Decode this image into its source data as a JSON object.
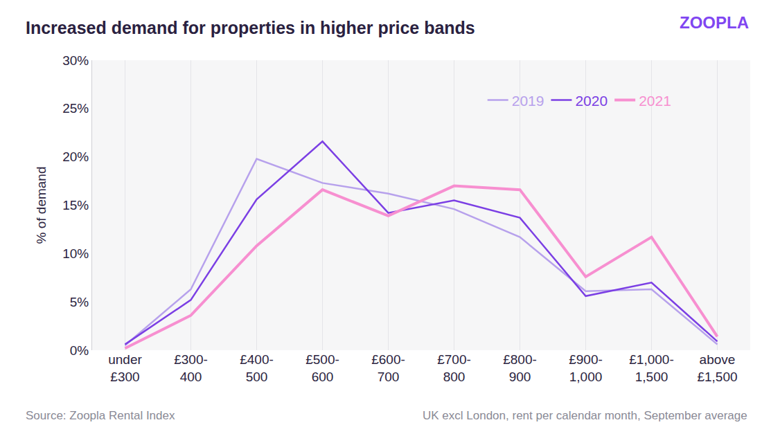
{
  "chart_data": {
    "type": "line",
    "title": "Increased demand for properties in higher price bands",
    "logo": "ZOOPLA",
    "source": "Source: Zoopla Rental Index",
    "note": "UK excl London, rent per calendar month, September average",
    "y_label": "% of demand",
    "categories": [
      "under £300",
      "£300-400",
      "£400-500",
      "£500-600",
      "£600-700",
      "£700-800",
      "£800-900",
      "£900-1,000",
      "£1,000-1,500",
      "above £1,500"
    ],
    "series": [
      {
        "name": "2019",
        "color": "#b7a1ec",
        "values": [
          0.5,
          6.3,
          19.8,
          17.3,
          16.2,
          14.6,
          11.7,
          6.1,
          6.3,
          0.6
        ]
      },
      {
        "name": "2020",
        "color": "#7b3fe4",
        "values": [
          0.6,
          5.2,
          15.6,
          21.6,
          14.2,
          15.5,
          13.7,
          5.6,
          7.0,
          0.9
        ]
      },
      {
        "name": "2021",
        "color": "#f78fd0",
        "values": [
          0.2,
          3.6,
          10.8,
          16.6,
          13.9,
          17.0,
          16.6,
          7.6,
          11.7,
          1.4
        ]
      }
    ],
    "ylim": [
      0,
      30
    ],
    "yticks": [
      {
        "value": 0,
        "label": "0%"
      },
      {
        "value": 5,
        "label": "5%"
      },
      {
        "value": 10,
        "label": "10%"
      },
      {
        "value": 15,
        "label": "15%"
      },
      {
        "value": 20,
        "label": "20%"
      },
      {
        "value": 25,
        "label": "25%"
      },
      {
        "value": 30,
        "label": "30%"
      }
    ],
    "grid": true,
    "legend": "upper right"
  }
}
